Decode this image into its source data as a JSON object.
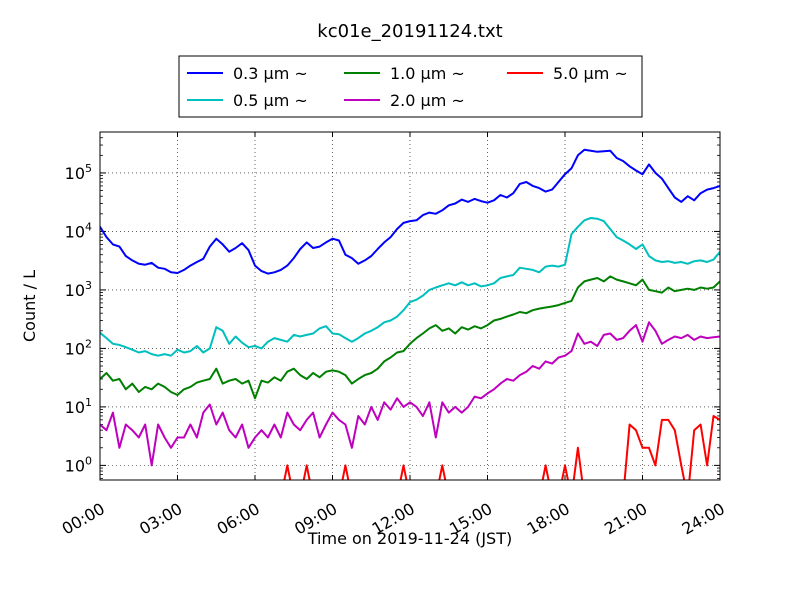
{
  "chart_data": {
    "type": "line",
    "title": "kc01e_20191124.txt",
    "xlabel": "Time on 2019-11-24 (JST)",
    "ylabel": "Count / L",
    "x_ticks": [
      "00:00",
      "03:00",
      "06:00",
      "09:00",
      "12:00",
      "15:00",
      "18:00",
      "21:00",
      "24:00"
    ],
    "y_ticks": [
      "10^0",
      "10^1",
      "10^2",
      "10^3",
      "10^4",
      "10^5"
    ],
    "xlim_hours": [
      0,
      24
    ],
    "ylim_log10": [
      -0.25,
      5.7
    ],
    "y_scale": "log",
    "grid": true,
    "legend_position": "top-center",
    "series": [
      {
        "name": "0.3 μm ~",
        "color": "#0000ff",
        "x": [
          0.0,
          0.25,
          0.5,
          0.75,
          1.0,
          1.25,
          1.5,
          1.75,
          2.0,
          2.25,
          2.5,
          2.75,
          3.0,
          3.25,
          3.5,
          3.75,
          4.0,
          4.25,
          4.5,
          4.75,
          5.0,
          5.25,
          5.5,
          5.75,
          6.0,
          6.25,
          6.5,
          6.75,
          7.0,
          7.25,
          7.5,
          7.75,
          8.0,
          8.25,
          8.5,
          8.75,
          9.0,
          9.25,
          9.5,
          9.75,
          10.0,
          10.25,
          10.5,
          10.75,
          11.0,
          11.25,
          11.5,
          11.75,
          12.0,
          12.25,
          12.5,
          12.75,
          13.0,
          13.25,
          13.5,
          13.75,
          14.0,
          14.25,
          14.5,
          14.75,
          15.0,
          15.25,
          15.5,
          15.75,
          16.0,
          16.25,
          16.5,
          16.75,
          17.0,
          17.25,
          17.5,
          17.75,
          18.0,
          18.25,
          18.5,
          18.75,
          19.0,
          19.25,
          19.5,
          19.75,
          20.0,
          20.25,
          20.5,
          20.75,
          21.0,
          21.25,
          21.5,
          21.75,
          22.0,
          22.25,
          22.5,
          22.75,
          23.0,
          23.25,
          23.5,
          23.75,
          24.0
        ],
        "values": [
          12000,
          8000,
          6000,
          5500,
          3800,
          3200,
          2800,
          2700,
          2900,
          2400,
          2300,
          2000,
          1950,
          2200,
          2600,
          3000,
          3400,
          5500,
          7500,
          6000,
          4500,
          5200,
          6300,
          4800,
          2600,
          2100,
          1900,
          2000,
          2200,
          2600,
          3500,
          5000,
          6500,
          5200,
          5500,
          6500,
          7500,
          7000,
          4000,
          3500,
          2800,
          3200,
          3800,
          5000,
          6500,
          8000,
          11000,
          14000,
          15000,
          15500,
          19000,
          21000,
          20000,
          23000,
          28000,
          30000,
          35000,
          32000,
          36000,
          33000,
          31000,
          34000,
          42000,
          38000,
          45000,
          65000,
          70000,
          60000,
          55000,
          48000,
          52000,
          70000,
          95000,
          120000,
          200000,
          250000,
          240000,
          230000,
          235000,
          240000,
          180000,
          160000,
          130000,
          110000,
          95000,
          140000,
          100000,
          80000,
          55000,
          38000,
          32000,
          40000,
          34000,
          45000,
          52000,
          55000,
          60000
        ]
      },
      {
        "name": "0.5 μm ~",
        "color": "#00bfbf",
        "x": [
          0.0,
          0.25,
          0.5,
          0.75,
          1.0,
          1.25,
          1.5,
          1.75,
          2.0,
          2.25,
          2.5,
          2.75,
          3.0,
          3.25,
          3.5,
          3.75,
          4.0,
          4.25,
          4.5,
          4.75,
          5.0,
          5.25,
          5.5,
          5.75,
          6.0,
          6.25,
          6.5,
          6.75,
          7.0,
          7.25,
          7.5,
          7.75,
          8.0,
          8.25,
          8.5,
          8.75,
          9.0,
          9.25,
          9.5,
          9.75,
          10.0,
          10.25,
          10.5,
          10.75,
          11.0,
          11.25,
          11.5,
          11.75,
          12.0,
          12.25,
          12.5,
          12.75,
          13.0,
          13.25,
          13.5,
          13.75,
          14.0,
          14.25,
          14.5,
          14.75,
          15.0,
          15.25,
          15.5,
          15.75,
          16.0,
          16.25,
          16.5,
          16.75,
          17.0,
          17.25,
          17.5,
          17.75,
          18.0,
          18.25,
          18.5,
          18.75,
          19.0,
          19.25,
          19.5,
          19.75,
          20.0,
          20.25,
          20.5,
          20.75,
          21.0,
          21.25,
          21.5,
          21.75,
          22.0,
          22.25,
          22.5,
          22.75,
          23.0,
          23.25,
          23.5,
          23.75,
          24.0
        ],
        "values": [
          185,
          150,
          120,
          115,
          105,
          95,
          85,
          90,
          80,
          75,
          80,
          75,
          95,
          85,
          90,
          110,
          85,
          100,
          230,
          200,
          120,
          160,
          125,
          105,
          110,
          100,
          130,
          150,
          140,
          130,
          170,
          160,
          170,
          180,
          220,
          240,
          180,
          175,
          150,
          130,
          150,
          180,
          200,
          230,
          280,
          300,
          350,
          450,
          620,
          680,
          800,
          1000,
          1100,
          1200,
          1300,
          1200,
          1350,
          1200,
          1300,
          1150,
          1200,
          1300,
          1600,
          1700,
          1800,
          2400,
          2300,
          2200,
          2000,
          2500,
          2600,
          2500,
          2700,
          9000,
          12000,
          15500,
          17000,
          16500,
          15000,
          11000,
          8000,
          7000,
          6000,
          5000,
          6000,
          3800,
          3200,
          3000,
          3100,
          2900,
          3000,
          2800,
          3100,
          3200,
          3000,
          3300,
          4500
        ]
      },
      {
        "name": "1.0 μm ~",
        "color": "#008000",
        "x": [
          0.0,
          0.25,
          0.5,
          0.75,
          1.0,
          1.25,
          1.5,
          1.75,
          2.0,
          2.25,
          2.5,
          2.75,
          3.0,
          3.25,
          3.5,
          3.75,
          4.0,
          4.25,
          4.5,
          4.75,
          5.0,
          5.25,
          5.5,
          5.75,
          6.0,
          6.25,
          6.5,
          6.75,
          7.0,
          7.25,
          7.5,
          7.75,
          8.0,
          8.25,
          8.5,
          8.75,
          9.0,
          9.25,
          9.5,
          9.75,
          10.0,
          10.25,
          10.5,
          10.75,
          11.0,
          11.25,
          11.5,
          11.75,
          12.0,
          12.25,
          12.5,
          12.75,
          13.0,
          13.25,
          13.5,
          13.75,
          14.0,
          14.25,
          14.5,
          14.75,
          15.0,
          15.25,
          15.5,
          15.75,
          16.0,
          16.25,
          16.5,
          16.75,
          17.0,
          17.25,
          17.5,
          17.75,
          18.0,
          18.25,
          18.5,
          18.75,
          19.0,
          19.25,
          19.5,
          19.75,
          20.0,
          20.25,
          20.5,
          20.75,
          21.0,
          21.25,
          21.5,
          21.75,
          22.0,
          22.25,
          22.5,
          22.75,
          23.0,
          23.25,
          23.5,
          23.75,
          24.0
        ],
        "values": [
          30,
          38,
          28,
          30,
          20,
          25,
          18,
          22,
          20,
          25,
          22,
          18,
          16,
          20,
          22,
          26,
          28,
          30,
          45,
          25,
          28,
          30,
          25,
          28,
          14,
          28,
          26,
          32,
          28,
          40,
          45,
          35,
          30,
          38,
          32,
          40,
          42,
          40,
          35,
          25,
          30,
          35,
          38,
          45,
          60,
          70,
          85,
          90,
          120,
          150,
          180,
          220,
          250,
          200,
          220,
          180,
          230,
          210,
          240,
          220,
          250,
          300,
          320,
          350,
          380,
          420,
          400,
          450,
          480,
          500,
          520,
          550,
          600,
          650,
          1100,
          1400,
          1500,
          1600,
          1400,
          1700,
          1500,
          1400,
          1300,
          1200,
          1500,
          1000,
          950,
          900,
          1100,
          950,
          1000,
          1050,
          1000,
          1100,
          1050,
          1100,
          1400
        ]
      },
      {
        "name": "2.0 μm ~",
        "color": "#bf00bf",
        "x": [
          0.0,
          0.25,
          0.5,
          0.75,
          1.0,
          1.25,
          1.5,
          1.75,
          2.0,
          2.25,
          2.5,
          2.75,
          3.0,
          3.25,
          3.5,
          3.75,
          4.0,
          4.25,
          4.5,
          4.75,
          5.0,
          5.25,
          5.5,
          5.75,
          6.0,
          6.25,
          6.5,
          6.75,
          7.0,
          7.25,
          7.5,
          7.75,
          8.0,
          8.25,
          8.5,
          8.75,
          9.0,
          9.25,
          9.5,
          9.75,
          10.0,
          10.25,
          10.5,
          10.75,
          11.0,
          11.25,
          11.5,
          11.75,
          12.0,
          12.25,
          12.5,
          12.75,
          13.0,
          13.25,
          13.5,
          13.75,
          14.0,
          14.25,
          14.5,
          14.75,
          15.0,
          15.25,
          15.5,
          15.75,
          16.0,
          16.25,
          16.5,
          16.75,
          17.0,
          17.25,
          17.5,
          17.75,
          18.0,
          18.25,
          18.5,
          18.75,
          19.0,
          19.25,
          19.5,
          19.75,
          20.0,
          20.25,
          20.5,
          20.75,
          21.0,
          21.25,
          21.5,
          21.75,
          22.0,
          22.25,
          22.5,
          22.75,
          23.0,
          23.25,
          23.5,
          23.75,
          24.0
        ],
        "values": [
          5,
          4,
          8,
          2,
          5,
          4,
          3,
          5,
          1,
          5,
          3,
          2,
          3,
          3,
          5,
          3,
          8,
          11,
          5,
          8,
          4,
          3,
          5,
          2,
          3,
          4,
          3,
          5,
          3,
          8,
          5,
          4,
          6,
          8,
          3,
          5,
          8,
          6,
          5,
          2,
          7,
          5,
          10,
          6,
          12,
          9,
          14,
          10,
          12,
          10,
          7,
          12,
          3,
          12,
          8,
          10,
          8,
          10,
          15,
          14,
          17,
          20,
          25,
          30,
          28,
          35,
          40,
          50,
          45,
          60,
          55,
          70,
          75,
          90,
          180,
          120,
          130,
          110,
          170,
          180,
          140,
          150,
          200,
          250,
          130,
          280,
          200,
          120,
          140,
          160,
          150,
          170,
          140,
          160,
          150,
          155,
          160
        ]
      },
      {
        "name": "5.0 μm ~",
        "color": "#ff0000",
        "x": [
          0.0,
          0.25,
          0.5,
          0.75,
          1.0,
          1.25,
          1.5,
          1.75,
          2.0,
          2.25,
          2.5,
          2.75,
          3.0,
          3.25,
          3.5,
          3.75,
          4.0,
          4.25,
          4.5,
          4.75,
          5.0,
          5.25,
          5.5,
          5.75,
          6.0,
          6.25,
          6.5,
          6.75,
          7.0,
          7.25,
          7.5,
          7.75,
          8.0,
          8.25,
          8.5,
          8.75,
          9.0,
          9.25,
          9.5,
          9.75,
          10.0,
          10.25,
          10.5,
          10.75,
          11.0,
          11.25,
          11.5,
          11.75,
          12.0,
          12.25,
          12.5,
          12.75,
          13.0,
          13.25,
          13.5,
          13.75,
          14.0,
          14.25,
          14.5,
          14.75,
          15.0,
          15.25,
          15.5,
          15.75,
          16.0,
          16.25,
          16.5,
          16.75,
          17.0,
          17.25,
          17.5,
          17.75,
          18.0,
          18.25,
          18.5,
          18.75,
          19.0,
          19.25,
          19.5,
          19.75,
          20.0,
          20.25,
          20.5,
          20.75,
          21.0,
          21.25,
          21.5,
          21.75,
          22.0,
          22.25,
          22.5,
          22.75,
          23.0,
          23.25,
          23.5,
          23.75,
          24.0
        ],
        "values": [
          0,
          0,
          0,
          0,
          0,
          0,
          0,
          0,
          0,
          0,
          0,
          0,
          0,
          0,
          0,
          0,
          0,
          0,
          0,
          0,
          0,
          0,
          0,
          0,
          0,
          0,
          0,
          0,
          0,
          1,
          0,
          0,
          1,
          0,
          0,
          0,
          0,
          0,
          1,
          0,
          0,
          0,
          0,
          0,
          0,
          0,
          0,
          1,
          0,
          0,
          0,
          0,
          0,
          1,
          0,
          0,
          0,
          0,
          0,
          0,
          0,
          0,
          0,
          0,
          0,
          0,
          0,
          0,
          0,
          1,
          0,
          0,
          1,
          0,
          2,
          0,
          0,
          0,
          0,
          0,
          0,
          0,
          5,
          4,
          2,
          2,
          1,
          6,
          6,
          4,
          1,
          0,
          4,
          5,
          1,
          7,
          6
        ]
      }
    ]
  }
}
